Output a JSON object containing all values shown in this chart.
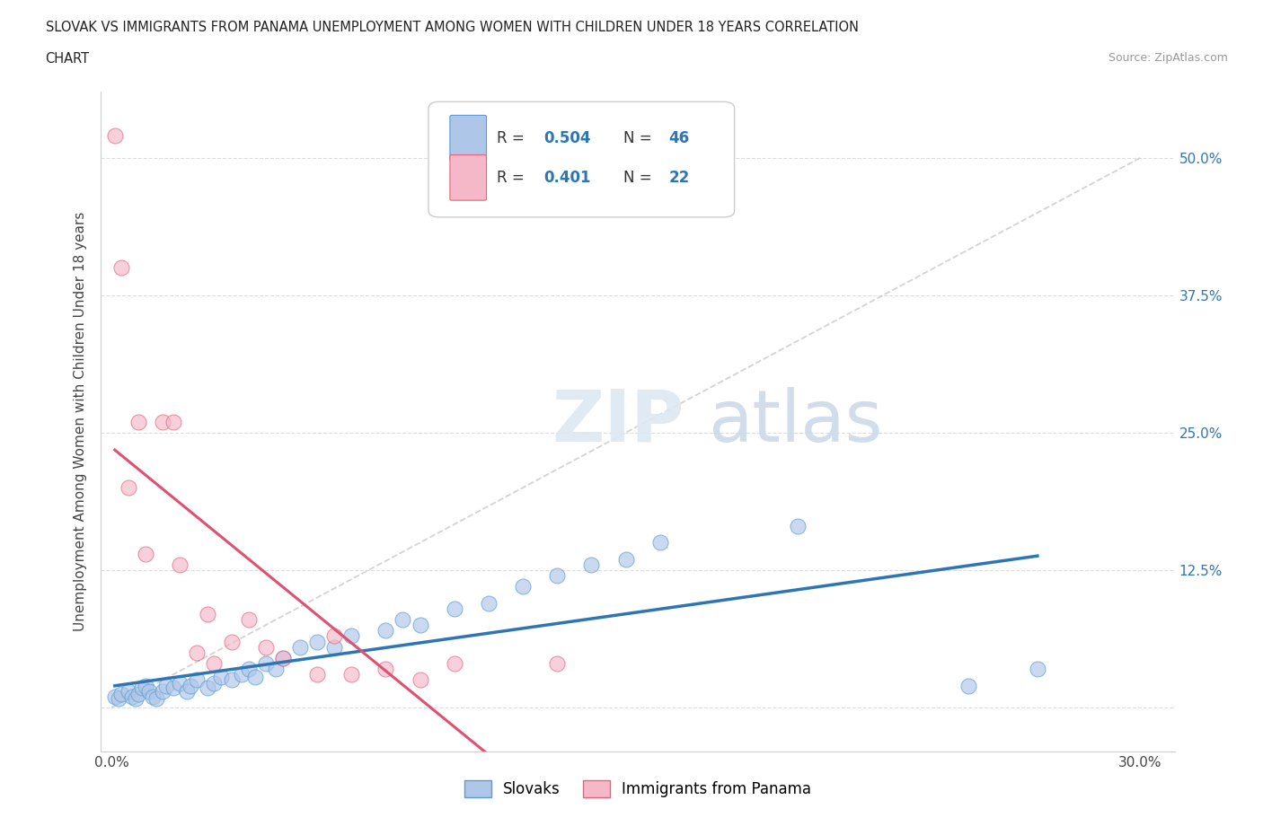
{
  "title_line1": "SLOVAK VS IMMIGRANTS FROM PANAMA UNEMPLOYMENT AMONG WOMEN WITH CHILDREN UNDER 18 YEARS CORRELATION",
  "title_line2": "CHART",
  "source_text": "Source: ZipAtlas.com",
  "ylabel": "Unemployment Among Women with Children Under 18 years",
  "xlim": [
    -0.003,
    0.31
  ],
  "ylim": [
    -0.04,
    0.56
  ],
  "yticks": [
    0.0,
    0.125,
    0.25,
    0.375,
    0.5
  ],
  "ytick_labels_right": [
    "50.0%",
    "37.5%",
    "25.0%",
    "12.5%",
    ""
  ],
  "xtick_labels": [
    "0.0%",
    "30.0%"
  ],
  "slovak_fill_color": "#aec6e8",
  "slovak_edge_color": "#5b9bd5",
  "panama_fill_color": "#f4b8c8",
  "panama_edge_color": "#e8637a",
  "trendline_slovak_color": "#2e75b6",
  "trendline_panama_color": "#e05070",
  "diagonal_color": "#c8c8c8",
  "R_slovak": 0.504,
  "N_slovak": 46,
  "R_panama": 0.401,
  "N_panama": 22,
  "legend_label_slovak": "Slovaks",
  "legend_label_panama": "Immigrants from Panama",
  "slovak_x": [
    0.001,
    0.002,
    0.003,
    0.005,
    0.006,
    0.007,
    0.008,
    0.009,
    0.01,
    0.011,
    0.012,
    0.013,
    0.015,
    0.016,
    0.018,
    0.02,
    0.022,
    0.023,
    0.025,
    0.028,
    0.03,
    0.032,
    0.035,
    0.038,
    0.04,
    0.042,
    0.045,
    0.048,
    0.05,
    0.055,
    0.06,
    0.065,
    0.07,
    0.08,
    0.085,
    0.09,
    0.1,
    0.11,
    0.12,
    0.13,
    0.14,
    0.15,
    0.16,
    0.2,
    0.25,
    0.27
  ],
  "slovak_y": [
    0.01,
    0.008,
    0.012,
    0.015,
    0.01,
    0.008,
    0.012,
    0.018,
    0.02,
    0.015,
    0.01,
    0.008,
    0.015,
    0.02,
    0.018,
    0.022,
    0.015,
    0.02,
    0.025,
    0.018,
    0.022,
    0.028,
    0.025,
    0.03,
    0.035,
    0.028,
    0.04,
    0.035,
    0.045,
    0.055,
    0.06,
    0.055,
    0.065,
    0.07,
    0.08,
    0.075,
    0.09,
    0.095,
    0.11,
    0.12,
    0.13,
    0.135,
    0.15,
    0.165,
    0.02,
    0.035
  ],
  "panama_x": [
    0.001,
    0.003,
    0.005,
    0.008,
    0.01,
    0.015,
    0.018,
    0.02,
    0.025,
    0.028,
    0.03,
    0.035,
    0.04,
    0.045,
    0.05,
    0.06,
    0.065,
    0.07,
    0.08,
    0.09,
    0.1,
    0.13
  ],
  "panama_y": [
    0.52,
    0.4,
    0.2,
    0.26,
    0.14,
    0.26,
    0.26,
    0.13,
    0.05,
    0.085,
    0.04,
    0.06,
    0.08,
    0.055,
    0.045,
    0.03,
    0.065,
    0.03,
    0.035,
    0.025,
    0.04,
    0.04
  ]
}
